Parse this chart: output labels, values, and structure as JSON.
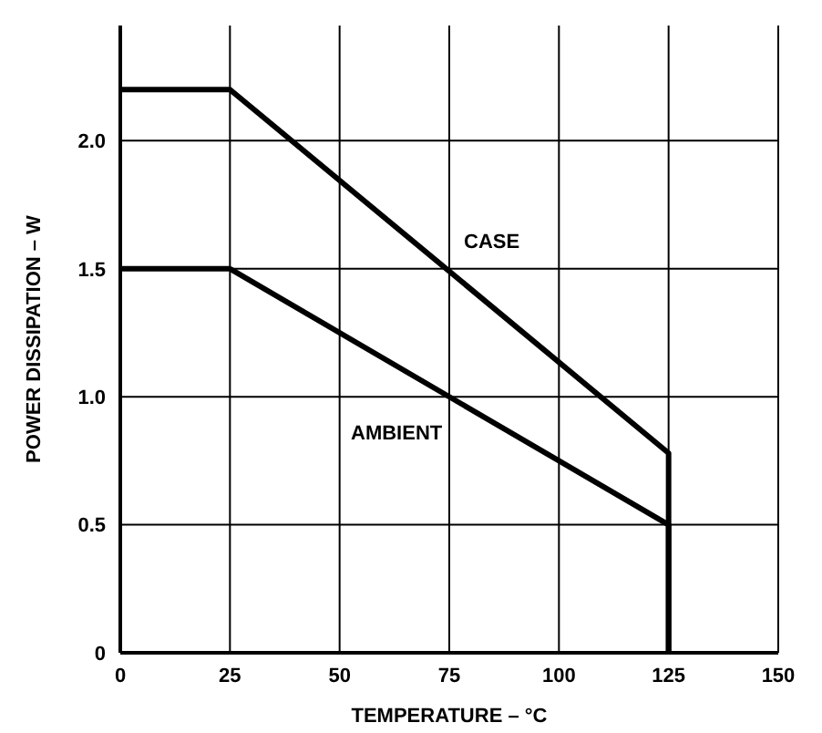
{
  "chart_data": {
    "type": "line",
    "xlabel": "TEMPERATURE – °C",
    "ylabel": "POWER DISSIPATION – W",
    "series": [
      {
        "name": "CASE",
        "color": "#000000",
        "x": [
          0,
          25,
          125,
          125
        ],
        "values": [
          2.2,
          2.2,
          0.78,
          0
        ]
      },
      {
        "name": "AMBIENT",
        "color": "#000000",
        "x": [
          0,
          25,
          125,
          125
        ],
        "values": [
          1.5,
          1.5,
          0.5,
          0
        ]
      }
    ],
    "xlim": [
      0,
      150
    ],
    "xticks": [
      0,
      25,
      50,
      75,
      100,
      125,
      150
    ],
    "ylim": [
      0,
      2.45
    ],
    "yticks": [
      0,
      0.5,
      {
        "value": 1,
        "label": "1.0"
      },
      1.5,
      {
        "value": 2,
        "label": "2.0"
      }
    ],
    "grid": true,
    "legend": false,
    "marker": "none",
    "line_style": "solid"
  }
}
